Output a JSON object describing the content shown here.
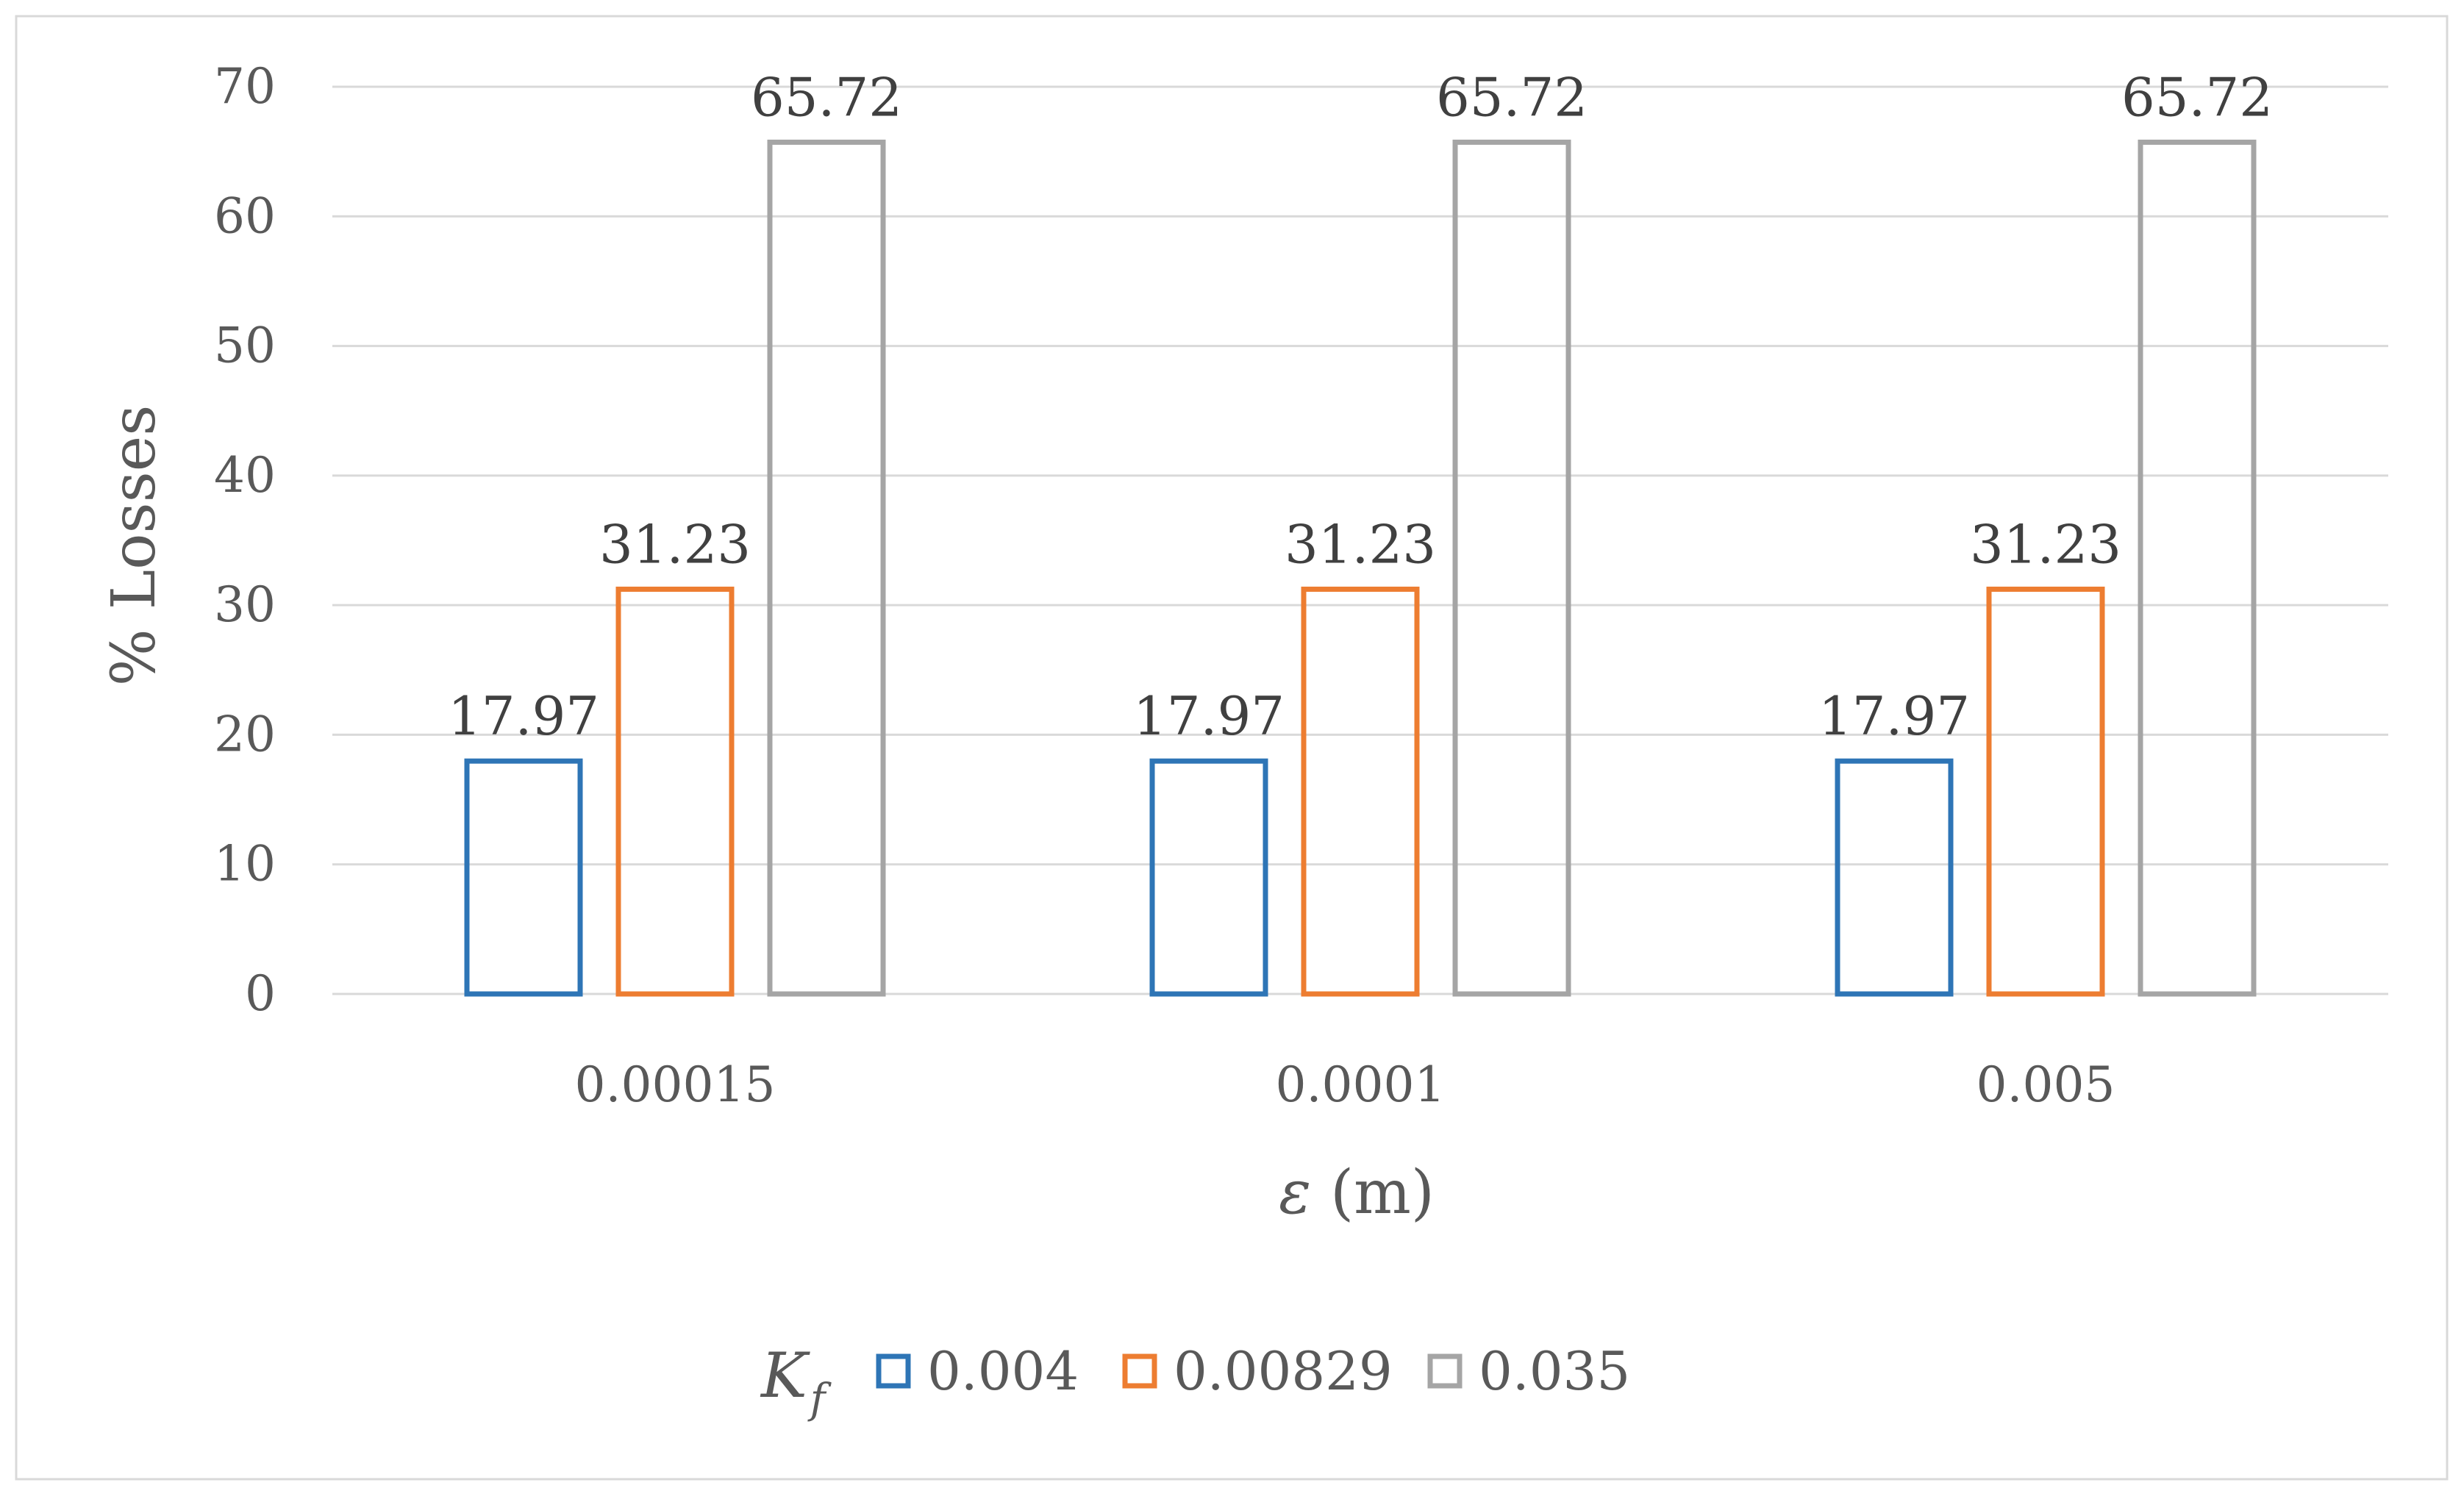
{
  "chart_data": {
    "type": "bar",
    "categories": [
      "0.00015",
      "0.0001",
      "0.005"
    ],
    "series": [
      {
        "name": "0.004",
        "values": [
          17.97,
          17.97,
          17.97
        ],
        "color": "#2E75B6"
      },
      {
        "name": "0.00829",
        "values": [
          31.23,
          31.23,
          31.23
        ],
        "color": "#ED7D31"
      },
      {
        "name": "0.035",
        "values": [
          65.72,
          65.72,
          65.72
        ],
        "color": "#A5A5A5"
      }
    ],
    "data_labels": [
      [
        "17.97",
        "17.97",
        "17.97"
      ],
      [
        "31.23",
        "31.23",
        "31.23"
      ],
      [
        "65.72",
        "65.72",
        "65.72"
      ]
    ],
    "ylim": [
      0,
      70
    ],
    "yticks": [
      "0",
      "10",
      "20",
      "30",
      "40",
      "50",
      "60",
      "70"
    ],
    "xlabel": "ε (m)",
    "xlabel_symbol": "ε",
    "xlabel_unit": "(m)",
    "ylabel": "% Losses",
    "legend": {
      "title_main": "K",
      "title_sub": "f",
      "position": "bottom"
    },
    "grid": true,
    "bar_style": "outline",
    "gridline_color": "#D9D9D9"
  }
}
